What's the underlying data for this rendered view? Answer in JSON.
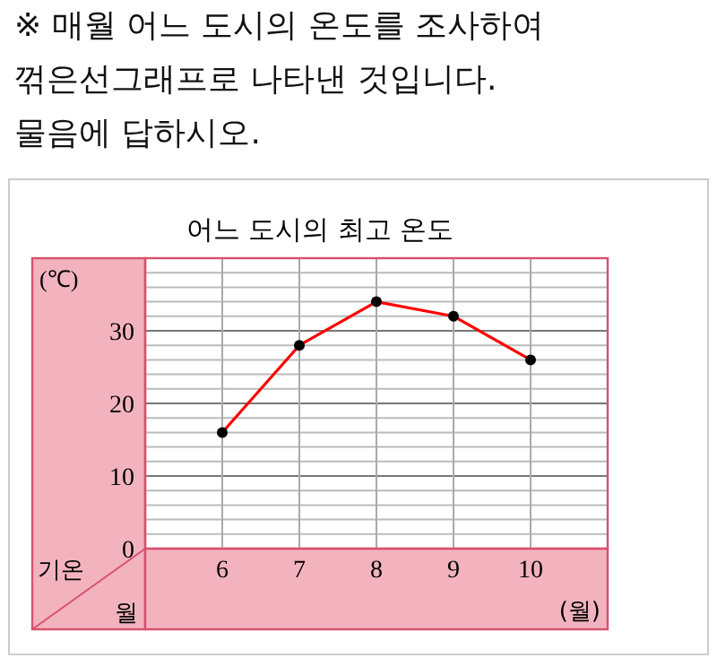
{
  "chart_data": {
    "type": "line",
    "title": "어느 도시의 최고 온도",
    "annotations": [
      "※ 매월 어느 도시의 온도를 조사하여 꺾은선그래프로 나타낸 것입니다. 물음에 답하시오.",
      "기온",
      "월"
    ],
    "ylabel": "(℃)",
    "xlabel": "(월)",
    "x": [
      6,
      7,
      8,
      9,
      10
    ],
    "series": [
      {
        "color": "#ff0000",
        "values": [
          16,
          28,
          34,
          32,
          26
        ]
      }
    ],
    "xlim": [
      5,
      11
    ],
    "xticks": [
      6,
      7,
      8,
      9,
      10
    ],
    "ylim": [
      0,
      40
    ],
    "yticks": [
      0,
      {
        "value": 2,
        "label": null
      },
      {
        "value": 4,
        "label": null
      },
      {
        "value": 6,
        "label": null
      },
      {
        "value": 8,
        "label": null
      },
      10,
      {
        "value": 12,
        "label": null
      },
      {
        "value": 14,
        "label": null
      },
      {
        "value": 16,
        "label": null
      },
      {
        "value": 18,
        "label": null
      },
      20,
      {
        "value": 22,
        "label": null
      },
      {
        "value": 24,
        "label": null
      },
      {
        "value": 26,
        "label": null
      },
      {
        "value": 28,
        "label": null
      },
      30,
      {
        "value": 32,
        "label": null
      },
      {
        "value": 34,
        "label": null
      },
      {
        "value": 36,
        "label": null
      },
      {
        "value": 38,
        "label": null
      },
      {
        "value": 40,
        "label": null
      }
    ],
    "grid": true,
    "marker": "circle",
    "line_style": "solid"
  }
}
